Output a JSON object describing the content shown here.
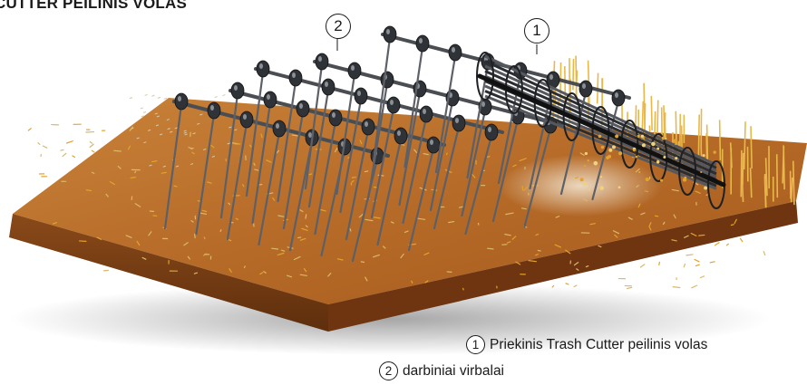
{
  "title": "CUTTER PEILINIS VOLAS",
  "callouts": [
    {
      "number": "1"
    },
    {
      "number": "2"
    }
  ],
  "legend": [
    {
      "number": "1",
      "label": "Priekinis Trash Cutter peilinis volas"
    },
    {
      "number": "2",
      "label": "darbiniai virbalai"
    }
  ],
  "colors": {
    "soil_top": "#b86a26",
    "soil_side": "#7a3f14",
    "straw": "#e2a32c",
    "tine": "#4a4d52",
    "cutter": "#2b2d31"
  }
}
